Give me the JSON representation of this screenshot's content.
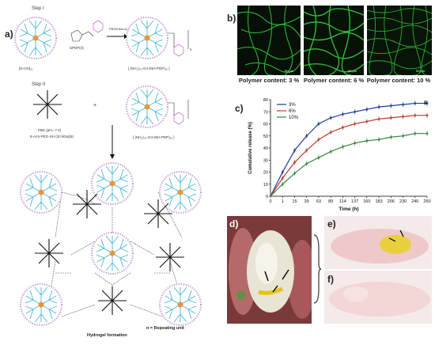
{
  "panel_a": {
    "label": "a)",
    "step1_title": "Step I",
    "step2_title": "Step II",
    "reactant1": "[G-OH]₃₁",
    "reagent1": "SPDP(3)",
    "conditions1": "PBS/Ethanol pH 7.4",
    "product1": "[ (NH₂)₃₀-G4-(NH-PDP)₁₆ ]",
    "reactant2": "8-Arm-PEG-SH (20 kDa)(5)",
    "conditions2": "PBS (pH= 7.4)",
    "product2": "[ (NH₂)₃₀-G4-(NH-PDP)₁₆ ]",
    "plus": "+",
    "subscript_n": "n",
    "hydrogel_label": "Hydrogel formation",
    "legend_n": "n = Repeating unit"
  },
  "panel_b": {
    "label": "b)",
    "images": [
      {
        "caption": "Polymer content: 3 %",
        "scale": "50 μm"
      },
      {
        "caption": "Polymer content: 6 %",
        "scale": "50 μm"
      },
      {
        "caption": "Polymer content: 10 %",
        "scale": "50 μm"
      }
    ]
  },
  "panel_c": {
    "label": "c)"
  },
  "panel_d": {
    "label": "d)"
  },
  "panel_e": {
    "label": "e)"
  },
  "panel_f": {
    "label": "f)"
  },
  "colors": {
    "s3": "#1a3a9a",
    "s6": "#c0392b",
    "s10": "#2e8b3a"
  },
  "chart_data": {
    "type": "line",
    "title": "",
    "annotation": "B",
    "xlabel": "Time (h)",
    "ylabel": "Cumulative release (%)",
    "x": [
      0,
      1,
      15,
      39,
      63,
      89,
      114,
      137,
      160,
      183,
      206,
      230,
      240,
      260
    ],
    "ylim": [
      0,
      80
    ],
    "yticks": [
      0,
      10,
      20,
      30,
      40,
      50,
      60,
      70,
      80
    ],
    "series": [
      {
        "name": "3%",
        "values": [
          0,
          20,
          38,
          50,
          60,
          65,
          68,
          70,
          72,
          74,
          75,
          76,
          77,
          77
        ]
      },
      {
        "name": "6%",
        "values": [
          0,
          15,
          28,
          38,
          47,
          53,
          57,
          60,
          62,
          64,
          65,
          66,
          67,
          67
        ]
      },
      {
        "name": "10%",
        "values": [
          0,
          10,
          19,
          27,
          32,
          37,
          41,
          44,
          46,
          47,
          49,
          50,
          52,
          52
        ]
      }
    ],
    "grid": false,
    "legend": "top-left"
  }
}
